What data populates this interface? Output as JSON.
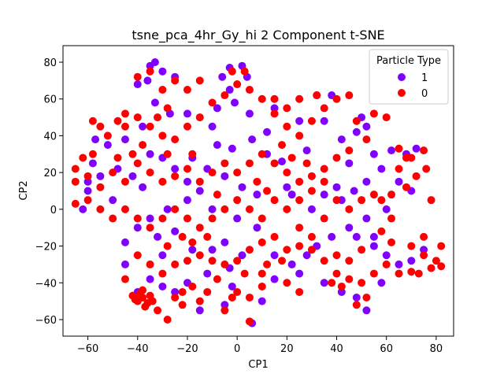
{
  "chart_data": {
    "type": "scatter",
    "title": "tsne_pca_4hr_Gy_hi 2 Component t-SNE",
    "xlabel": "CP1",
    "ylabel": "CP2",
    "xlim": [
      -70,
      87
    ],
    "ylim": [
      -69,
      89
    ],
    "xticks": [
      -60,
      -40,
      -20,
      0,
      20,
      40,
      60,
      80
    ],
    "yticks": [
      -60,
      -40,
      -20,
      0,
      20,
      40,
      60,
      80
    ],
    "xtick_labels": [
      "−60",
      "−40",
      "−20",
      "0",
      "20",
      "40",
      "60",
      "80"
    ],
    "ytick_labels": [
      "−60",
      "−40",
      "−20",
      "0",
      "20",
      "40",
      "60",
      "80"
    ],
    "grid": false,
    "legend": {
      "title": "Particle Type",
      "placement": "top-right",
      "entries": [
        {
          "label": "1",
          "color": "#8000ff"
        },
        {
          "label": "0",
          "color": "#ff0000"
        }
      ]
    },
    "series": [
      {
        "name": "1",
        "color": "#8000ff",
        "points": [
          [
            -35,
            78
          ],
          [
            -33,
            80
          ],
          [
            -30,
            75
          ],
          [
            -25,
            72
          ],
          [
            -36,
            70
          ],
          [
            -40,
            68
          ],
          [
            -3,
            77
          ],
          [
            2,
            78
          ],
          [
            -6,
            72
          ],
          [
            4,
            72
          ],
          [
            -1,
            58
          ],
          [
            -8,
            55
          ],
          [
            5,
            52
          ],
          [
            -20,
            52
          ],
          [
            -27,
            52
          ],
          [
            -33,
            58
          ],
          [
            -38,
            45
          ],
          [
            -45,
            38
          ],
          [
            -52,
            35
          ],
          [
            -57,
            38
          ],
          [
            -58,
            25
          ],
          [
            -55,
            18
          ],
          [
            -60,
            15
          ],
          [
            -48,
            22
          ],
          [
            -42,
            18
          ],
          [
            -38,
            12
          ],
          [
            -30,
            28
          ],
          [
            -25,
            22
          ],
          [
            -18,
            28
          ],
          [
            -12,
            22
          ],
          [
            -8,
            35
          ],
          [
            -2,
            33
          ],
          [
            6,
            38
          ],
          [
            12,
            30
          ],
          [
            18,
            26
          ],
          [
            -5,
            18
          ],
          [
            2,
            12
          ],
          [
            8,
            8
          ],
          [
            -15,
            10
          ],
          [
            -20,
            5
          ],
          [
            -28,
            0
          ],
          [
            -35,
            -5
          ],
          [
            -40,
            -10
          ],
          [
            -45,
            -18
          ],
          [
            -32,
            -15
          ],
          [
            -25,
            -12
          ],
          [
            -18,
            -22
          ],
          [
            -10,
            -22
          ],
          [
            -5,
            -18
          ],
          [
            2,
            -25
          ],
          [
            -3,
            -32
          ],
          [
            -12,
            -35
          ],
          [
            -20,
            -40
          ],
          [
            -25,
            -45
          ],
          [
            -30,
            -42
          ],
          [
            -35,
            -38
          ],
          [
            -40,
            -45
          ],
          [
            -15,
            -55
          ],
          [
            -5,
            -52
          ],
          [
            6,
            -62
          ],
          [
            10,
            -50
          ],
          [
            -2,
            -42
          ],
          [
            15,
            -38
          ],
          [
            22,
            -30
          ],
          [
            28,
            -25
          ],
          [
            32,
            -20
          ],
          [
            38,
            -15
          ],
          [
            45,
            -10
          ],
          [
            52,
            -5
          ],
          [
            48,
            -15
          ],
          [
            55,
            -20
          ],
          [
            60,
            -25
          ],
          [
            65,
            -30
          ],
          [
            70,
            -28
          ],
          [
            75,
            -22
          ],
          [
            42,
            5
          ],
          [
            47,
            10
          ],
          [
            52,
            15
          ],
          [
            45,
            25
          ],
          [
            55,
            30
          ],
          [
            48,
            42
          ],
          [
            52,
            45
          ],
          [
            42,
            38
          ],
          [
            35,
            48
          ],
          [
            28,
            32
          ],
          [
            22,
            8
          ],
          [
            30,
            0
          ],
          [
            35,
            8
          ],
          [
            40,
            12
          ],
          [
            62,
            32
          ],
          [
            68,
            30
          ],
          [
            72,
            33
          ],
          [
            58,
            22
          ],
          [
            65,
            15
          ],
          [
            70,
            10
          ],
          [
            60,
            0
          ],
          [
            55,
            -15
          ],
          [
            42,
            -45
          ],
          [
            48,
            -48
          ],
          [
            52,
            -55
          ],
          [
            58,
            -40
          ],
          [
            35,
            -40
          ],
          [
            25,
            -35
          ],
          [
            15,
            -25
          ],
          [
            8,
            -10
          ],
          [
            0,
            -5
          ],
          [
            -10,
            0
          ],
          [
            -20,
            15
          ],
          [
            -30,
            -25
          ],
          [
            -45,
            -30
          ],
          [
            -50,
            5
          ],
          [
            -60,
            10
          ],
          [
            -62,
            0
          ],
          [
            -35,
            30
          ],
          [
            -10,
            45
          ],
          [
            15,
            55
          ],
          [
            25,
            48
          ],
          [
            38,
            62
          ],
          [
            32,
            62
          ],
          [
            -3,
            65
          ],
          [
            12,
            42
          ],
          [
            20,
            12
          ],
          [
            50,
            50
          ]
        ]
      },
      {
        "name": "0",
        "color": "#ff0000",
        "points": [
          [
            -38,
            -48
          ],
          [
            -40,
            -50
          ],
          [
            -36,
            -51
          ],
          [
            -39,
            -46
          ],
          [
            -37,
            -53
          ],
          [
            -35,
            -47
          ],
          [
            -41,
            -49
          ],
          [
            -38,
            -44
          ],
          [
            -34,
            -50
          ],
          [
            -42,
            -47
          ],
          [
            -28,
            -60
          ],
          [
            -32,
            -55
          ],
          [
            -22,
            -52
          ],
          [
            -25,
            -48
          ],
          [
            -18,
            -42
          ],
          [
            -12,
            -45
          ],
          [
            -8,
            -38
          ],
          [
            0,
            -45
          ],
          [
            5,
            -48
          ],
          [
            5,
            -61
          ],
          [
            3,
            -35
          ],
          [
            10,
            -35
          ],
          [
            12,
            -30
          ],
          [
            18,
            -28
          ],
          [
            20,
            -22
          ],
          [
            25,
            -20
          ],
          [
            30,
            -22
          ],
          [
            35,
            -28
          ],
          [
            40,
            -35
          ],
          [
            45,
            -38
          ],
          [
            50,
            -40
          ],
          [
            55,
            -35
          ],
          [
            60,
            -30
          ],
          [
            65,
            -35
          ],
          [
            70,
            -34
          ],
          [
            73,
            -35
          ],
          [
            78,
            -32
          ],
          [
            82,
            -31
          ],
          [
            75,
            -25
          ],
          [
            70,
            -20
          ],
          [
            62,
            -18
          ],
          [
            58,
            -12
          ],
          [
            62,
            -5
          ],
          [
            58,
            5
          ],
          [
            62,
            8
          ],
          [
            68,
            12
          ],
          [
            72,
            18
          ],
          [
            76,
            22
          ],
          [
            70,
            28
          ],
          [
            75,
            32
          ],
          [
            65,
            22
          ],
          [
            60,
            50
          ],
          [
            55,
            52
          ],
          [
            48,
            48
          ],
          [
            52,
            38
          ],
          [
            45,
            32
          ],
          [
            40,
            28
          ],
          [
            35,
            22
          ],
          [
            30,
            18
          ],
          [
            25,
            15
          ],
          [
            20,
            20
          ],
          [
            15,
            25
          ],
          [
            10,
            30
          ],
          [
            5,
            25
          ],
          [
            0,
            20
          ],
          [
            -5,
            25
          ],
          [
            -10,
            20
          ],
          [
            -15,
            15
          ],
          [
            -20,
            22
          ],
          [
            -25,
            18
          ],
          [
            -30,
            15
          ],
          [
            -35,
            20
          ],
          [
            -40,
            25
          ],
          [
            -45,
            15
          ],
          [
            -50,
            20
          ],
          [
            -55,
            12
          ],
          [
            -60,
            18
          ],
          [
            -65,
            22
          ],
          [
            -58,
            30
          ],
          [
            -52,
            40
          ],
          [
            -48,
            48
          ],
          [
            -45,
            52
          ],
          [
            -40,
            50
          ],
          [
            -35,
            45
          ],
          [
            -30,
            40
          ],
          [
            -25,
            38
          ],
          [
            -20,
            45
          ],
          [
            -15,
            50
          ],
          [
            -10,
            58
          ],
          [
            -5,
            62
          ],
          [
            0,
            68
          ],
          [
            5,
            65
          ],
          [
            10,
            60
          ],
          [
            15,
            52
          ],
          [
            20,
            45
          ],
          [
            25,
            40
          ],
          [
            30,
            48
          ],
          [
            35,
            55
          ],
          [
            40,
            60
          ],
          [
            45,
            62
          ],
          [
            32,
            62
          ],
          [
            25,
            60
          ],
          [
            20,
            55
          ],
          [
            15,
            60
          ],
          [
            -2,
            75
          ],
          [
            3,
            75
          ],
          [
            -15,
            70
          ],
          [
            -20,
            65
          ],
          [
            -25,
            70
          ],
          [
            -30,
            65
          ],
          [
            -35,
            75
          ],
          [
            -40,
            72
          ],
          [
            -28,
            55
          ],
          [
            -32,
            50
          ],
          [
            -38,
            35
          ],
          [
            -42,
            30
          ],
          [
            -48,
            28
          ],
          [
            -62,
            28
          ],
          [
            -65,
            15
          ],
          [
            -60,
            5
          ],
          [
            -55,
            0
          ],
          [
            -65,
            3
          ],
          [
            -50,
            -5
          ],
          [
            -45,
            0
          ],
          [
            -40,
            -5
          ],
          [
            -35,
            -10
          ],
          [
            -30,
            -5
          ],
          [
            -25,
            0
          ],
          [
            -20,
            -5
          ],
          [
            -15,
            -10
          ],
          [
            -10,
            -5
          ],
          [
            -5,
            0
          ],
          [
            0,
            5
          ],
          [
            5,
            0
          ],
          [
            10,
            -5
          ],
          [
            15,
            5
          ],
          [
            20,
            0
          ],
          [
            25,
            5
          ],
          [
            30,
            10
          ],
          [
            35,
            15
          ],
          [
            40,
            5
          ],
          [
            45,
            0
          ],
          [
            50,
            5
          ],
          [
            55,
            8
          ],
          [
            25,
            -10
          ],
          [
            30,
            -15
          ],
          [
            35,
            -5
          ],
          [
            40,
            -25
          ],
          [
            45,
            -28
          ],
          [
            50,
            -22
          ],
          [
            -25,
            -30
          ],
          [
            -20,
            -28
          ],
          [
            -15,
            -25
          ],
          [
            -10,
            -28
          ],
          [
            -5,
            -30
          ],
          [
            0,
            -28
          ],
          [
            5,
            -22
          ],
          [
            10,
            -18
          ],
          [
            15,
            -15
          ],
          [
            -30,
            -35
          ],
          [
            -35,
            -30
          ],
          [
            -40,
            -25
          ],
          [
            -45,
            -38
          ],
          [
            -28,
            -20
          ],
          [
            -22,
            -15
          ],
          [
            -18,
            -18
          ],
          [
            -12,
            -15
          ],
          [
            8,
            15
          ],
          [
            12,
            10
          ],
          [
            18,
            35
          ],
          [
            22,
            28
          ],
          [
            28,
            25
          ],
          [
            -8,
            8
          ],
          [
            -18,
            30
          ],
          [
            -28,
            30
          ],
          [
            -45,
            45
          ],
          [
            -55,
            45
          ],
          [
            -58,
            48
          ],
          [
            65,
            33
          ],
          [
            68,
            28
          ],
          [
            78,
            5
          ],
          [
            80,
            -28
          ],
          [
            82,
            -20
          ],
          [
            75,
            -15
          ],
          [
            52,
            -48
          ],
          [
            48,
            -52
          ],
          [
            42,
            -42
          ],
          [
            38,
            -40
          ],
          [
            20,
            -40
          ],
          [
            25,
            -45
          ],
          [
            10,
            -42
          ],
          [
            -5,
            -55
          ],
          [
            -15,
            -50
          ],
          [
            -22,
            -45
          ],
          [
            -2,
            -48
          ]
        ]
      }
    ]
  }
}
